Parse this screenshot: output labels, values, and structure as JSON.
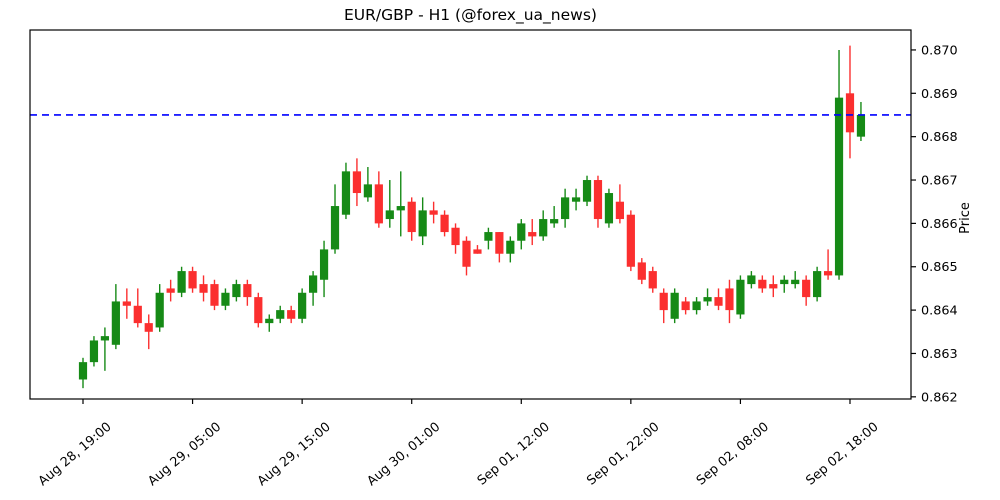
{
  "chart_data": {
    "type": "candlestick",
    "title": "EUR/GBP - H1 (@forex_ua_news)",
    "ylabel": "Price",
    "symbol": "EUR/GBP",
    "timeframe": "H1",
    "source_handle": "@forex_ua_news",
    "ylim": [
      0.86195,
      0.87046
    ],
    "y_ticks": [
      0.862,
      0.863,
      0.864,
      0.865,
      0.866,
      0.867,
      0.868,
      0.869,
      0.87
    ],
    "y_tick_decimals": 3,
    "x_tick_indices": [
      0,
      10,
      20,
      30,
      40,
      50,
      60,
      70
    ],
    "x_tick_labels": [
      "Aug 28, 19:00",
      "Aug 29, 05:00",
      "Aug 29, 15:00",
      "Aug 30, 01:00",
      "Sep 01, 12:00",
      "Sep 01, 22:00",
      "Sep 02, 08:00",
      "Sep 02, 18:00"
    ],
    "hline": {
      "value": 0.8685,
      "color": "#0000ff",
      "style": "dashed"
    },
    "grid": false,
    "legend": null,
    "colors": {
      "up": "#168a16",
      "down": "#fb2f2f",
      "axis": "#000000",
      "background": "#ffffff"
    },
    "candles_ohlc": [
      [
        0.8624,
        0.8629,
        0.8622,
        0.8628
      ],
      [
        0.8628,
        0.8634,
        0.8627,
        0.8633
      ],
      [
        0.8633,
        0.8636,
        0.8626,
        0.8634
      ],
      [
        0.8632,
        0.8646,
        0.8631,
        0.8642
      ],
      [
        0.8642,
        0.8645,
        0.8638,
        0.8641
      ],
      [
        0.8641,
        0.8645,
        0.8636,
        0.8637
      ],
      [
        0.8637,
        0.8639,
        0.8631,
        0.8635
      ],
      [
        0.8636,
        0.8646,
        0.8635,
        0.8644
      ],
      [
        0.8645,
        0.8647,
        0.8642,
        0.8644
      ],
      [
        0.8644,
        0.865,
        0.8643,
        0.8649
      ],
      [
        0.8649,
        0.865,
        0.8644,
        0.8645
      ],
      [
        0.8646,
        0.8648,
        0.8642,
        0.8644
      ],
      [
        0.8646,
        0.8647,
        0.864,
        0.8641
      ],
      [
        0.8641,
        0.8645,
        0.864,
        0.8644
      ],
      [
        0.8643,
        0.8647,
        0.8642,
        0.8646
      ],
      [
        0.8646,
        0.8647,
        0.8641,
        0.8643
      ],
      [
        0.8643,
        0.8644,
        0.8636,
        0.8637
      ],
      [
        0.8637,
        0.8639,
        0.8635,
        0.8638
      ],
      [
        0.8638,
        0.8641,
        0.8637,
        0.864
      ],
      [
        0.864,
        0.8641,
        0.8637,
        0.8638
      ],
      [
        0.8638,
        0.8645,
        0.8637,
        0.8644
      ],
      [
        0.8644,
        0.8649,
        0.8641,
        0.8648
      ],
      [
        0.8647,
        0.8656,
        0.8643,
        0.8654
      ],
      [
        0.8654,
        0.8669,
        0.8653,
        0.8664
      ],
      [
        0.8662,
        0.8674,
        0.8661,
        0.8672
      ],
      [
        0.8672,
        0.8675,
        0.8664,
        0.8667
      ],
      [
        0.8666,
        0.8673,
        0.8665,
        0.8669
      ],
      [
        0.8669,
        0.8672,
        0.8659,
        0.866
      ],
      [
        0.8661,
        0.867,
        0.8659,
        0.8663
      ],
      [
        0.8663,
        0.8672,
        0.8657,
        0.8664
      ],
      [
        0.8665,
        0.8666,
        0.8656,
        0.8658
      ],
      [
        0.8657,
        0.8666,
        0.8655,
        0.8663
      ],
      [
        0.8663,
        0.8665,
        0.866,
        0.8662
      ],
      [
        0.8662,
        0.8663,
        0.8657,
        0.8658
      ],
      [
        0.8659,
        0.866,
        0.8653,
        0.8655
      ],
      [
        0.8656,
        0.8657,
        0.8648,
        0.865
      ],
      [
        0.8654,
        0.8655,
        0.8653,
        0.8653
      ],
      [
        0.8656,
        0.8659,
        0.8654,
        0.8658
      ],
      [
        0.8658,
        0.8658,
        0.8651,
        0.8653
      ],
      [
        0.8653,
        0.8657,
        0.8651,
        0.8656
      ],
      [
        0.8656,
        0.8661,
        0.8654,
        0.866
      ],
      [
        0.8658,
        0.8661,
        0.8655,
        0.8657
      ],
      [
        0.8657,
        0.8663,
        0.8656,
        0.8661
      ],
      [
        0.866,
        0.8664,
        0.8659,
        0.8661
      ],
      [
        0.8661,
        0.8668,
        0.8659,
        0.8666
      ],
      [
        0.8665,
        0.8668,
        0.8663,
        0.8666
      ],
      [
        0.8665,
        0.8671,
        0.8664,
        0.867
      ],
      [
        0.867,
        0.8671,
        0.8659,
        0.8661
      ],
      [
        0.866,
        0.8668,
        0.8659,
        0.8667
      ],
      [
        0.8665,
        0.8669,
        0.866,
        0.8661
      ],
      [
        0.8662,
        0.8663,
        0.8649,
        0.865
      ],
      [
        0.8651,
        0.8652,
        0.8646,
        0.8647
      ],
      [
        0.8649,
        0.865,
        0.8644,
        0.8645
      ],
      [
        0.8644,
        0.8645,
        0.8637,
        0.864
      ],
      [
        0.8638,
        0.8645,
        0.8637,
        0.8644
      ],
      [
        0.8642,
        0.8643,
        0.8639,
        0.864
      ],
      [
        0.864,
        0.8643,
        0.8639,
        0.8642
      ],
      [
        0.8642,
        0.8645,
        0.8641,
        0.8643
      ],
      [
        0.8643,
        0.8645,
        0.864,
        0.8641
      ],
      [
        0.8645,
        0.8647,
        0.8637,
        0.864
      ],
      [
        0.8639,
        0.8648,
        0.8638,
        0.8647
      ],
      [
        0.8646,
        0.8649,
        0.8645,
        0.8648
      ],
      [
        0.8647,
        0.8648,
        0.8644,
        0.8645
      ],
      [
        0.8646,
        0.8648,
        0.8643,
        0.8645
      ],
      [
        0.8646,
        0.8648,
        0.8644,
        0.8647
      ],
      [
        0.8646,
        0.8649,
        0.8645,
        0.8647
      ],
      [
        0.8647,
        0.8648,
        0.8641,
        0.8643
      ],
      [
        0.8643,
        0.865,
        0.8642,
        0.8649
      ],
      [
        0.8649,
        0.8654,
        0.8647,
        0.8648
      ],
      [
        0.8648,
        0.87,
        0.8647,
        0.8689
      ],
      [
        0.869,
        0.8701,
        0.8675,
        0.8681
      ],
      [
        0.868,
        0.8688,
        0.8679,
        0.8685
      ]
    ],
    "layout": {
      "plot_left": 30,
      "plot_right": 911,
      "plot_top": 30,
      "plot_bottom": 399,
      "first_candle_x": 83,
      "candle_step": 10.957,
      "body_width": 8.2
    }
  }
}
